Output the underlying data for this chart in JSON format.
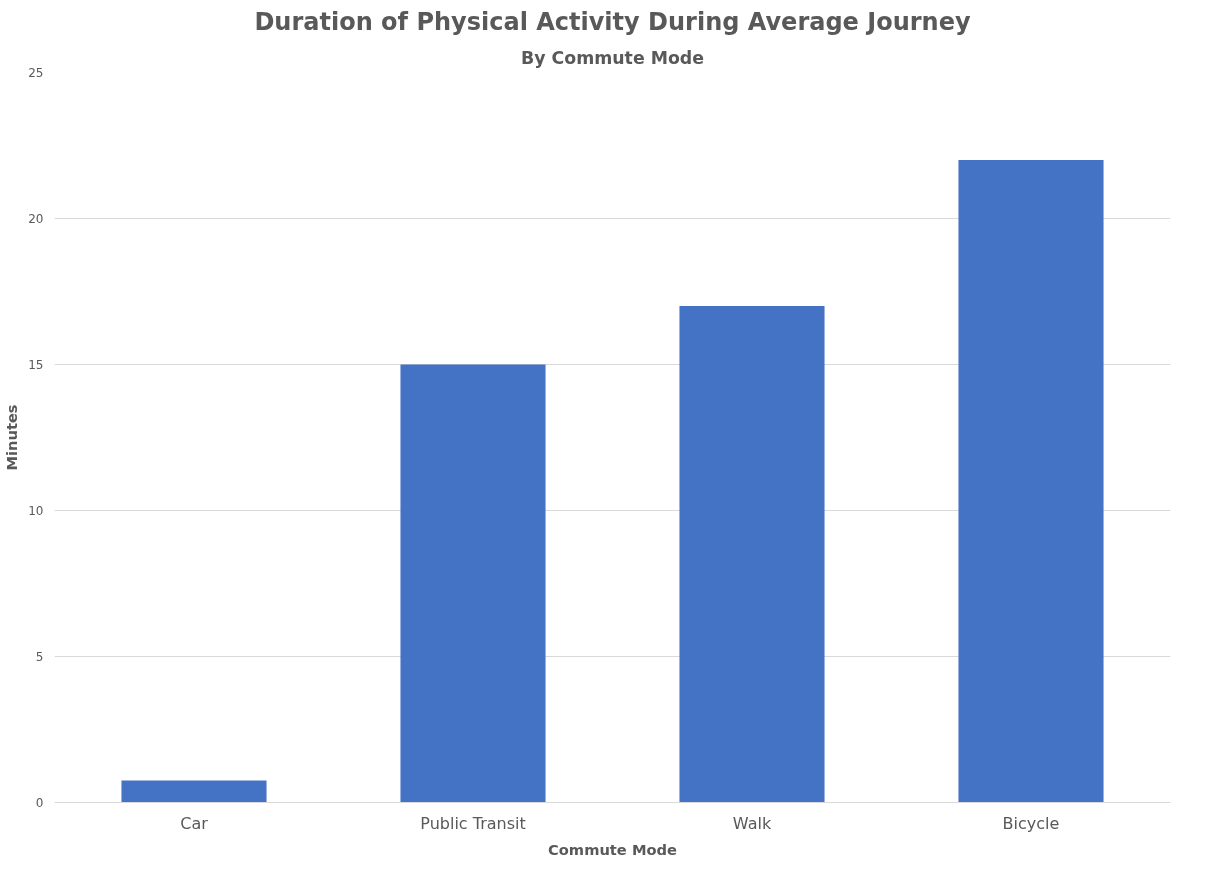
{
  "chart_data": {
    "type": "bar",
    "title": "Duration of Physical Activity During Average Journey",
    "subtitle": "By Commute Mode",
    "xlabel": "Commute Mode",
    "ylabel": "Minutes",
    "categories": [
      "Car",
      "Public Transit",
      "Walk",
      "Bicycle"
    ],
    "values": [
      0.75,
      15,
      17,
      22
    ],
    "color": "#4472c4",
    "ylim": [
      0,
      25
    ],
    "yticks": [
      0,
      5,
      10,
      15,
      20,
      25
    ],
    "grid": "y"
  }
}
